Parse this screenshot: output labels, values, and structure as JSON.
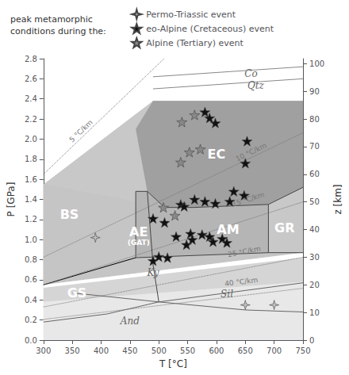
{
  "chart_data": {
    "type": "scatter",
    "xlabel": "T [°C]",
    "ylabel": "P [GPa]",
    "y2label": "z [km]",
    "xlim": [
      300,
      750
    ],
    "ylim": [
      0.0,
      2.8
    ],
    "y2lim": [
      0.0,
      101.808
    ],
    "xticks": [
      300,
      350,
      400,
      450,
      500,
      550,
      600,
      650,
      700,
      750
    ],
    "yticks": [
      {
        "value": 0.0,
        "label": "0.0"
      },
      0.2,
      0.4,
      0.6,
      0.8,
      {
        "value": 1.0,
        "label": "1.0"
      },
      1.2,
      1.4,
      1.6,
      1.8,
      {
        "value": 2.0,
        "label": "2.0"
      },
      2.2,
      2.4,
      2.6,
      2.8
    ],
    "y2ticks": [
      0,
      10,
      20,
      30,
      40,
      50,
      60,
      70,
      80,
      90,
      100
    ],
    "grid": false,
    "legend": "top",
    "legend_title": "peak metamorphic\nconditions during the:",
    "series": [
      {
        "name": "Permo-Triassic event",
        "color": "#c0c0c0",
        "marker": "star4",
        "values": [
          [
            390,
            1.02
          ],
          [
            650,
            0.35
          ],
          [
            700,
            0.35
          ]
        ]
      },
      {
        "name": "eo-Alpine (Cretaceous) event",
        "color": "#111111",
        "marker": "star",
        "values": [
          [
            490,
            0.79
          ],
          [
            500,
            0.83
          ],
          [
            490,
            1.21
          ],
          [
            510,
            1.17
          ],
          [
            515,
            0.82
          ],
          [
            530,
            1.03
          ],
          [
            538,
            1.35
          ],
          [
            544,
            1.33
          ],
          [
            548,
            0.95
          ],
          [
            555,
            1.06
          ],
          [
            558,
            1.0
          ],
          [
            562,
            1.4
          ],
          [
            575,
            1.05
          ],
          [
            580,
            1.38
          ],
          [
            588,
            1.03
          ],
          [
            594,
            0.98
          ],
          [
            598,
            1.36
          ],
          [
            610,
            1.01
          ],
          [
            618,
            0.97
          ],
          [
            623,
            1.38
          ],
          [
            630,
            1.48
          ],
          [
            648,
            1.44
          ],
          [
            650,
            1.76
          ],
          [
            653,
            1.98
          ],
          [
            598,
            2.16
          ],
          [
            588,
            2.21
          ],
          [
            580,
            2.27
          ]
        ]
      },
      {
        "name": "Alpine (Tertiary) event",
        "color": "#888888",
        "marker": "star",
        "values": [
          [
            540,
            2.17
          ],
          [
            562,
            2.24
          ],
          [
            572,
            1.9
          ],
          [
            553,
            1.87
          ],
          [
            538,
            1.77
          ],
          [
            508,
            1.32
          ],
          [
            528,
            1.24
          ]
        ]
      }
    ],
    "regions": [
      {
        "color": "#e0e0e0",
        "points": [
          [
            300,
            0.0
          ],
          [
            750,
            0.0
          ],
          [
            750,
            0.87
          ],
          [
            300,
            0.55
          ]
        ]
      },
      {
        "color": "#d5d5d5",
        "points": [
          [
            300,
            0.38
          ],
          [
            750,
            0.58
          ],
          [
            750,
            0.87
          ],
          [
            300,
            0.55
          ]
        ]
      },
      {
        "color": "#e8e8e8",
        "points": [
          [
            300,
            0.0
          ],
          [
            750,
            0.0
          ],
          [
            750,
            0.58
          ],
          [
            300,
            0.38
          ]
        ]
      },
      {
        "color": "#c5c5c5",
        "points": [
          [
            300,
            0.55
          ],
          [
            750,
            0.87
          ],
          [
            750,
            2.38
          ],
          [
            490,
            2.38
          ],
          [
            460,
            2.1
          ],
          [
            300,
            1.55
          ]
        ]
      },
      {
        "color": "#ffffff",
        "points": [
          [
            300,
            0.52
          ],
          [
            750,
            0.82
          ],
          [
            750,
            0.87
          ],
          [
            300,
            0.55
          ]
        ]
      },
      {
        "color": "#c8c8c8",
        "points": [
          [
            300,
            0.55
          ],
          [
            460,
            0.82
          ],
          [
            750,
            0.87
          ],
          [
            750,
            2.38
          ],
          [
            490,
            2.38
          ],
          [
            300,
            1.55
          ]
        ]
      },
      {
        "color": "#a0a0a0",
        "points": [
          [
            480,
            1.48
          ],
          [
            460,
            2.1
          ],
          [
            490,
            2.38
          ],
          [
            750,
            2.38
          ],
          [
            750,
            1.52
          ],
          [
            690,
            1.35
          ],
          [
            560,
            1.32
          ],
          [
            510,
            1.32
          ]
        ]
      },
      {
        "color": "#c0c0c0",
        "points": [
          [
            300,
            0.55
          ],
          [
            460,
            0.82
          ],
          [
            480,
            1.48
          ],
          [
            510,
            1.32
          ],
          [
            300,
            1.55
          ]
        ]
      },
      {
        "color": "#c5c5c5",
        "points": [
          [
            300,
            0.55
          ],
          [
            460,
            0.82
          ],
          [
            480,
            1.48
          ],
          [
            510,
            1.32
          ],
          [
            300,
            1.55
          ]
        ]
      },
      {
        "color": "#b5b5b5",
        "points": [
          [
            460,
            0.82
          ],
          [
            690,
            0.87
          ],
          [
            690,
            1.35
          ],
          [
            560,
            1.32
          ],
          [
            510,
            1.32
          ],
          [
            480,
            1.48
          ],
          [
            460,
            1.48
          ],
          [
            460,
            0.82
          ]
        ]
      },
      {
        "color": "#c8c8c8",
        "points": [
          [
            690,
            0.87
          ],
          [
            750,
            0.87
          ],
          [
            750,
            1.52
          ],
          [
            690,
            1.35
          ]
        ]
      }
    ],
    "boundaries": [
      {
        "color": "#000000",
        "points": [
          [
            300,
            0.55
          ],
          [
            460,
            0.82
          ]
        ]
      },
      {
        "color": "#444444",
        "points": [
          [
            460,
            0.82
          ],
          [
            460,
            1.48
          ]
        ]
      },
      {
        "color": "#444444",
        "points": [
          [
            460,
            1.48
          ],
          [
            480,
            1.48
          ]
        ]
      },
      {
        "color": "#444444",
        "points": [
          [
            480,
            1.48
          ],
          [
            510,
            1.32
          ]
        ]
      },
      {
        "color": "#444444",
        "points": [
          [
            510,
            1.32
          ],
          [
            560,
            1.32
          ]
        ]
      },
      {
        "color": "#444444",
        "points": [
          [
            560,
            1.32
          ],
          [
            690,
            1.35
          ]
        ]
      },
      {
        "color": "#444444",
        "points": [
          [
            690,
            1.35
          ],
          [
            750,
            1.52
          ]
        ]
      },
      {
        "color": "#444444",
        "points": [
          [
            690,
            0.87
          ],
          [
            690,
            1.35
          ]
        ]
      },
      {
        "color": "#444444",
        "points": [
          [
            460,
            0.82
          ],
          [
            690,
            0.87
          ]
        ]
      },
      {
        "color": "#444444",
        "points": [
          [
            690,
            0.87
          ],
          [
            750,
            0.87
          ]
        ]
      },
      {
        "color": "#666666",
        "points": [
          [
            350,
            0.47
          ],
          [
            500,
            0.38
          ]
        ]
      },
      {
        "color": "#444444",
        "points": [
          [
            500,
            0.38
          ],
          [
            490,
            0.75
          ],
          [
            480,
            1.48
          ]
        ]
      },
      {
        "color": "#666666",
        "points": [
          [
            500,
            0.38
          ],
          [
            750,
            0.57
          ]
        ]
      },
      {
        "color": "#666666",
        "points": [
          [
            500,
            0.38
          ],
          [
            410,
            0.26
          ],
          [
            300,
            0.18
          ]
        ]
      },
      {
        "color": "#666666",
        "points": [
          [
            500,
            0.38
          ],
          [
            650,
            0.3
          ],
          [
            750,
            0.28
          ]
        ]
      },
      {
        "color": "#888888",
        "points": [
          [
            490,
            2.62
          ],
          [
            750,
            2.72
          ]
        ]
      },
      {
        "color": "#888888",
        "points": [
          [
            490,
            2.5
          ],
          [
            750,
            2.6
          ]
        ]
      }
    ],
    "geotherms": [
      {
        "label": "5 °C/km",
        "color": "#777777",
        "line_style": "dotted",
        "points": [
          [
            300,
            1.650165
          ],
          [
            509.04,
            2.8
          ]
        ],
        "label_at": [
          365,
          2.08
        ]
      },
      {
        "label": "10 °C/km",
        "color": "#777777",
        "line_style": "dotted",
        "points": [
          [
            300,
            0.825083
          ],
          [
            750,
            2.062706
          ]
        ],
        "label_at": [
          660,
          1.87
        ]
      },
      {
        "label": "15 °C/km",
        "color": "#777777",
        "line_style": "dotted",
        "points": [
          [
            300,
            0.550055
          ],
          [
            750,
            1.375138
          ]
        ],
        "label_at": [
          655,
          1.4
        ]
      },
      {
        "label": "25 °C/km",
        "color": "#777777",
        "line_style": "dotted",
        "points": [
          [
            300,
            0.330033
          ],
          [
            750,
            0.825083
          ]
        ],
        "label_at": [
          648,
          0.88
        ]
      },
      {
        "label": "40 °C/km",
        "color": "#777777",
        "line_style": "dotted",
        "points": [
          [
            300,
            0.206271
          ],
          [
            750,
            0.515677
          ]
        ],
        "label_at": [
          643,
          0.58
        ]
      }
    ],
    "field_labels": [
      {
        "text": "BS",
        "x": 345,
        "y": 1.25,
        "color": "#ffffff"
      },
      {
        "text": "EC",
        "x": 600,
        "y": 1.85,
        "color": "#ffffff"
      },
      {
        "text": "AE",
        "x": 465,
        "y": 1.08,
        "color": "#ffffff"
      },
      {
        "text": "(GAT)",
        "x": 465,
        "y": 0.97,
        "color": "#ffffff"
      },
      {
        "text": "AM",
        "x": 620,
        "y": 1.1,
        "color": "#ffffff"
      },
      {
        "text": "GR",
        "x": 718,
        "y": 1.12,
        "color": "#ffffff"
      },
      {
        "text": "GS",
        "x": 358,
        "y": 0.47,
        "color": "#ffffff"
      }
    ],
    "mineral_labels": [
      {
        "text": "Ky",
        "x": 490,
        "y": 0.67,
        "color": "#666666"
      },
      {
        "text": "Sil",
        "x": 618,
        "y": 0.46,
        "color": "#666666"
      },
      {
        "text": "And",
        "x": 450,
        "y": 0.19,
        "color": "#666666"
      },
      {
        "text": "Co",
        "x": 660,
        "y": 2.65,
        "color": "#666666"
      },
      {
        "text": "Qtz",
        "x": 668,
        "y": 2.53,
        "color": "#666666"
      }
    ]
  }
}
